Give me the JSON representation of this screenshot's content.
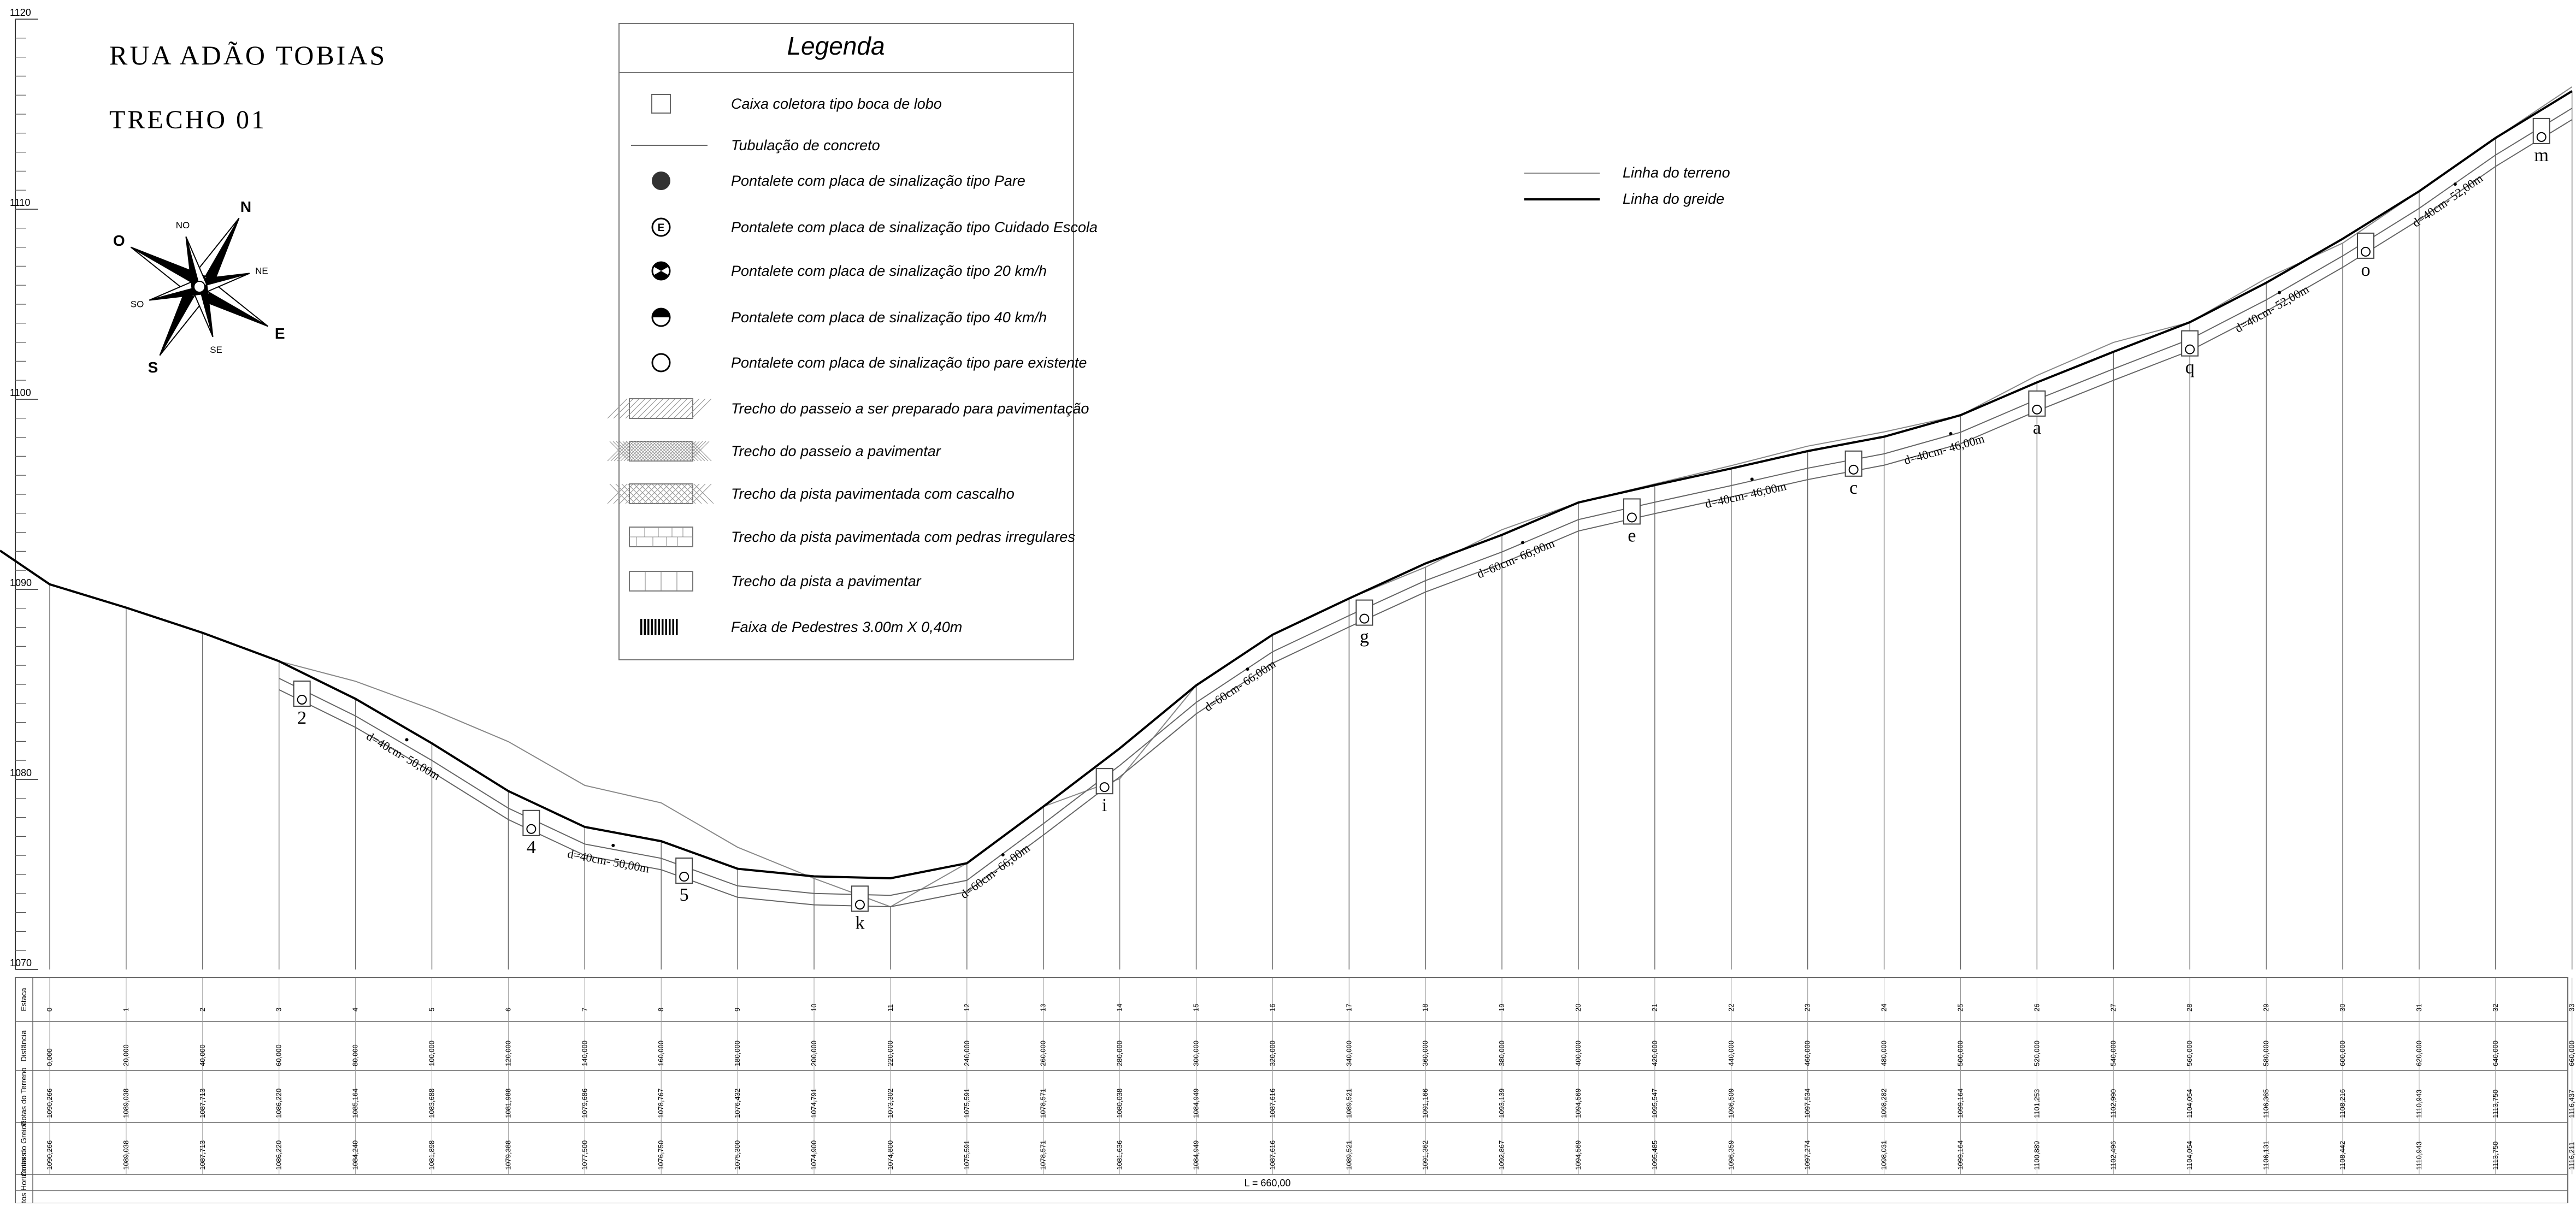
{
  "title": {
    "street": "RUA ADÃO TOBIAS",
    "section": "TRECHO 01"
  },
  "compass": {
    "cardinal": [
      "N",
      "S",
      "E",
      "O"
    ],
    "intercardinal": [
      "NO",
      "NE",
      "SE",
      "SO"
    ]
  },
  "legend": {
    "heading": "Legenda",
    "items": [
      {
        "symbol": "square-box-icon",
        "label": "Caixa coletora tipo boca de lobo"
      },
      {
        "symbol": "line-icon",
        "label": "Tubulação de concreto"
      },
      {
        "symbol": "filled-circle-icon",
        "label": "Pontalete com placa de sinalização tipo Pare"
      },
      {
        "symbol": "circle-e-icon",
        "label": "Pontalete com placa de sinalização tipo Cuidado Escola"
      },
      {
        "symbol": "circle-20-icon",
        "label": "Pontalete com placa de sinalização tipo 20 km/h"
      },
      {
        "symbol": "circle-40-icon",
        "label": "Pontalete com placa de sinalização tipo 40 km/h"
      },
      {
        "symbol": "empty-circle-icon",
        "label": "Pontalete com placa de sinalização tipo pare existente"
      },
      {
        "symbol": "hatch-icon",
        "label": "Trecho do passeio a ser preparado para pavimentação"
      },
      {
        "symbol": "dense-hatch-icon",
        "label": "Trecho do passeio a pavimentar"
      },
      {
        "symbol": "crosshatch-icon",
        "label": "Trecho da pista pavimentada com cascalho"
      },
      {
        "symbol": "stones-icon",
        "label": "Trecho da pista pavimentada com pedras irregulares"
      },
      {
        "symbol": "grid-icon",
        "label": "Trecho da pista a pavimentar"
      },
      {
        "symbol": "stripes-icon",
        "label": "Faixa de Pedestres 3.00m X 0,40m"
      }
    ]
  },
  "line_legend": {
    "terrain": "Linha do terreno",
    "grade": "Linha do greide"
  },
  "axis": {
    "ticks": [
      "1120",
      "1110",
      "1100",
      "1090",
      "1080",
      "1070"
    ]
  },
  "profile": {
    "terrain": [
      1090.266,
      1089.038,
      1087.713,
      1086.22,
      1085.164,
      1083.688,
      1081.988,
      1079.686,
      1078.767,
      1076.432,
      1074.791,
      1073.302,
      1075.591,
      1078.571,
      1080.038,
      1084.949,
      1087.616,
      1089.521,
      1091.166,
      1093.139,
      1094.569,
      1095.547,
      1096.509,
      1097.534,
      1098.282,
      1099.164,
      1101.253,
      1102.99,
      1104.054,
      1106.365,
      1108.216,
      1110.943,
      1113.75,
      1116.437
    ],
    "grade": [
      1090.266,
      1089.038,
      1087.713,
      1086.22,
      1084.24,
      1081.898,
      1079.388,
      1077.5,
      1076.75,
      1075.3,
      1074.9,
      1074.8,
      1075.591,
      1078.571,
      1081.636,
      1084.949,
      1087.616,
      1089.521,
      1091.362,
      1092.867,
      1094.569,
      1095.485,
      1096.359,
      1097.274,
      1098.031,
      1099.164,
      1100.889,
      1102.496,
      1104.054,
      1106.131,
      1108.442,
      1110.943,
      1113.75,
      1116.211
    ]
  },
  "pipes": [
    {
      "label": "d=40cm- 50,00m"
    },
    {
      "label": "d=40cm- 50,00m"
    },
    {
      "label": "d=60cm- 66,00m"
    },
    {
      "label": "d=60cm- 66,00m"
    },
    {
      "label": "d=60cm- 66,00m"
    },
    {
      "label": "d=40cm- 46,00m"
    },
    {
      "label": "d=40cm- 46,00m"
    },
    {
      "label": "d=40cm- 52,00m"
    },
    {
      "label": "d=40cm- 52,00m"
    }
  ],
  "manholes": [
    "2",
    "4",
    "5",
    "k",
    "i",
    "g",
    "e",
    "c",
    "a",
    "q",
    "o",
    "m"
  ],
  "table": {
    "row_labels": {
      "estaca": "Estaca",
      "distancia": "Distância",
      "cota_terreno": "Cotas do Terreno",
      "cota_greide": "Cotas do Greide",
      "elementos": "Elementos Horizontais"
    },
    "estacas": [
      "0",
      "1",
      "2",
      "3",
      "4",
      "5",
      "6",
      "7",
      "8",
      "9",
      "10",
      "11",
      "12",
      "13",
      "14",
      "15",
      "16",
      "17",
      "18",
      "19",
      "20",
      "21",
      "22",
      "23",
      "24",
      "25",
      "26",
      "27",
      "28",
      "29",
      "30",
      "31",
      "32",
      "33"
    ],
    "distancias": [
      "0,000",
      "20,000",
      "40,000",
      "60,000",
      "80,000",
      "100,000",
      "120,000",
      "140,000",
      "160,000",
      "180,000",
      "200,000",
      "220,000",
      "240,000",
      "260,000",
      "280,000",
      "300,000",
      "320,000",
      "340,000",
      "360,000",
      "380,000",
      "400,000",
      "420,000",
      "440,000",
      "460,000",
      "480,000",
      "500,000",
      "520,000",
      "540,000",
      "560,000",
      "580,000",
      "600,000",
      "620,000",
      "640,000",
      "660,000"
    ],
    "cotas_terreno": [
      "1090,266",
      "1089,038",
      "1087,713",
      "1086,220",
      "1085,164",
      "1083,688",
      "1081,988",
      "1079,686",
      "1078,767",
      "1076,432",
      "1074,791",
      "1073,302",
      "1075,591",
      "1078,571",
      "1080,038",
      "1084,949",
      "1087,616",
      "1089,521",
      "1091,166",
      "1093,139",
      "1094,569",
      "1095,547",
      "1096,509",
      "1097,534",
      "1098,282",
      "1099,164",
      "1101,253",
      "1102,990",
      "1104,054",
      "1106,365",
      "1108,216",
      "1110,943",
      "1113,750",
      "1116,437"
    ],
    "cotas_greide": [
      "1090,266",
      "1089,038",
      "1087,713",
      "1086,220",
      "1084,240",
      "1081,898",
      "1079,388",
      "1077,500",
      "1076,750",
      "1075,300",
      "1074,900",
      "1074,800",
      "1075,591",
      "1078,571",
      "1081,636",
      "1084,949",
      "1087,616",
      "1089,521",
      "1091,362",
      "1092,867",
      "1094,569",
      "1095,485",
      "1096,359",
      "1097,274",
      "1098,031",
      "1099,164",
      "1100,889",
      "1102,496",
      "1104,054",
      "1106,131",
      "1108,442",
      "1110,943",
      "1113,750",
      "1116,211"
    ],
    "comprimento": "L = 660,00"
  }
}
